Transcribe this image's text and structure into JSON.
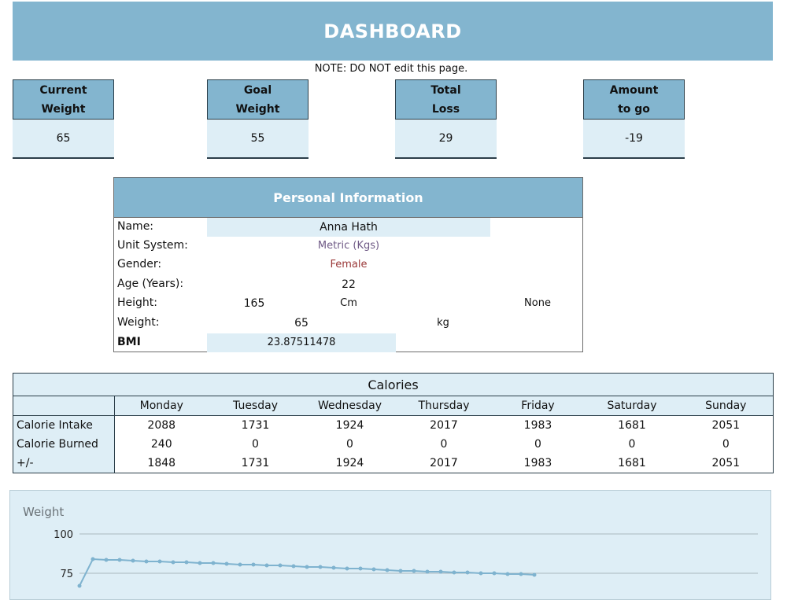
{
  "header": {
    "title": "DASHBOARD"
  },
  "note": "NOTE: DO NOT edit this page.",
  "stats": [
    {
      "label": "Current\nWeight",
      "value": "65"
    },
    {
      "label": "Goal\nWeight",
      "value": "55"
    },
    {
      "label": "Total\nLoss",
      "value": "29"
    },
    {
      "label": "Amount\nto go",
      "value": "-19"
    }
  ],
  "personal": {
    "title": "Personal Information",
    "name_label": "Name:",
    "name": "Anna Hath",
    "unit_label": "Unit System:",
    "unit": "Metric (Kgs)",
    "gender_label": "Gender:",
    "gender": "Female",
    "age_label": "Age (Years):",
    "age": "22",
    "height_label": "Height:",
    "height": "165",
    "height_unit": "Cm",
    "height_extra": "None",
    "weight_label": "Weight:",
    "weight": "65",
    "weight_unit": "kg",
    "bmi_label": "BMI",
    "bmi": "23.87511478"
  },
  "calories": {
    "title": "Calories",
    "days": [
      "Monday",
      "Tuesday",
      "Wednesday",
      "Thursday",
      "Friday",
      "Saturday",
      "Sunday"
    ],
    "rows": [
      {
        "label": "Calorie Intake",
        "values": [
          "2088",
          "1731",
          "1924",
          "2017",
          "1983",
          "1681",
          "2051"
        ]
      },
      {
        "label": "Calorie Burned",
        "values": [
          "240",
          "0",
          "0",
          "0",
          "0",
          "0",
          "0"
        ]
      },
      {
        "label": "+/-",
        "values": [
          "1848",
          "1731",
          "1924",
          "2017",
          "1983",
          "1681",
          "2051"
        ]
      }
    ]
  },
  "chart_data": {
    "type": "line",
    "title": "Weight",
    "yticks": [
      "100",
      "75"
    ],
    "ylim": [
      50,
      100
    ],
    "series": [
      {
        "values": [
          67,
          84,
          83.5,
          83.5,
          83,
          82.5,
          82.5,
          82,
          82,
          81.5,
          81.5,
          81,
          80.5,
          80.5,
          80,
          80,
          79.5,
          79,
          79,
          78.5,
          78,
          78,
          77.5,
          77,
          76.5,
          76.5,
          76,
          76,
          75.5,
          75.5,
          75,
          75,
          74.5,
          74.5,
          74
        ]
      }
    ],
    "line_color": "#7fb3cf"
  }
}
